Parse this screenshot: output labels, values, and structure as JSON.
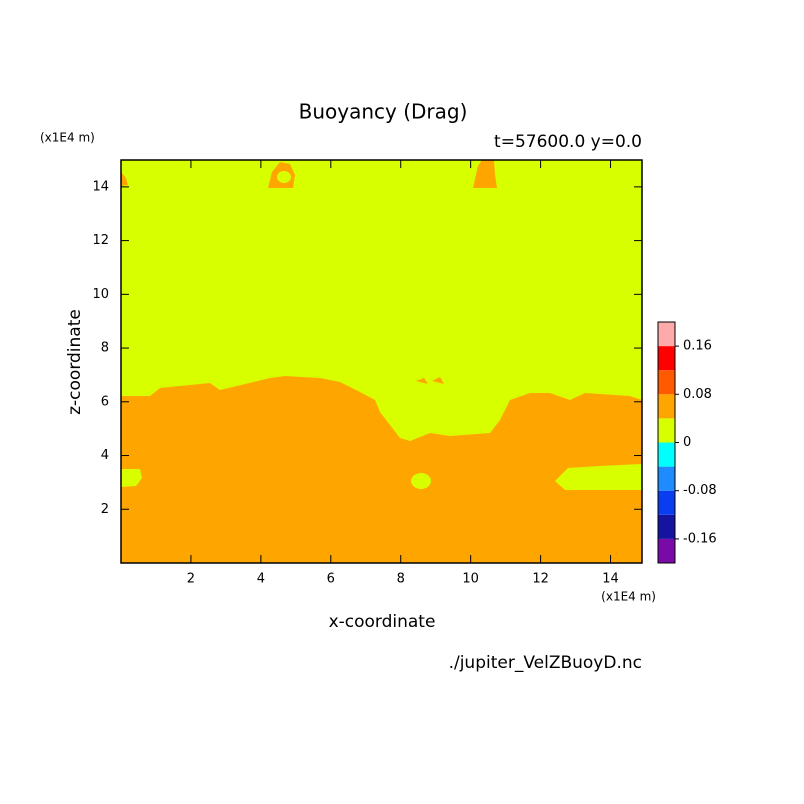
{
  "chart_data": {
    "type": "contour",
    "title": "Buoyancy (Drag)",
    "subtitle": "t=57600.0 y=0.0",
    "x_label": "x-coordinate",
    "y_label": "z-coordinate",
    "x_unit": "(x1E4 m)",
    "y_unit": "(x1E4 m)",
    "xlim": [
      0,
      14.9
    ],
    "ylim": [
      0,
      15
    ],
    "xticks": [
      2,
      4,
      6,
      8,
      10,
      12,
      14
    ],
    "yticks": [
      2,
      4,
      6,
      8,
      10,
      12,
      14
    ],
    "levels": [
      -0.2,
      -0.16,
      -0.12,
      -0.08,
      -0.04,
      0,
      0.04,
      0.08,
      0.12,
      0.16,
      0.2
    ],
    "colors": [
      "#7a0aa8",
      "#1414a0",
      "#0a3cf0",
      "#1e8cff",
      "#00ffff",
      "#d7ff00",
      "#ffa500",
      "#ff5a00",
      "#ff0000",
      "#ffaaaa"
    ],
    "colorbar_ticks": [
      -0.16,
      -0.08,
      0,
      0.08,
      0.16
    ],
    "footer": "./jupiter_VelZBuoyD.nc"
  }
}
